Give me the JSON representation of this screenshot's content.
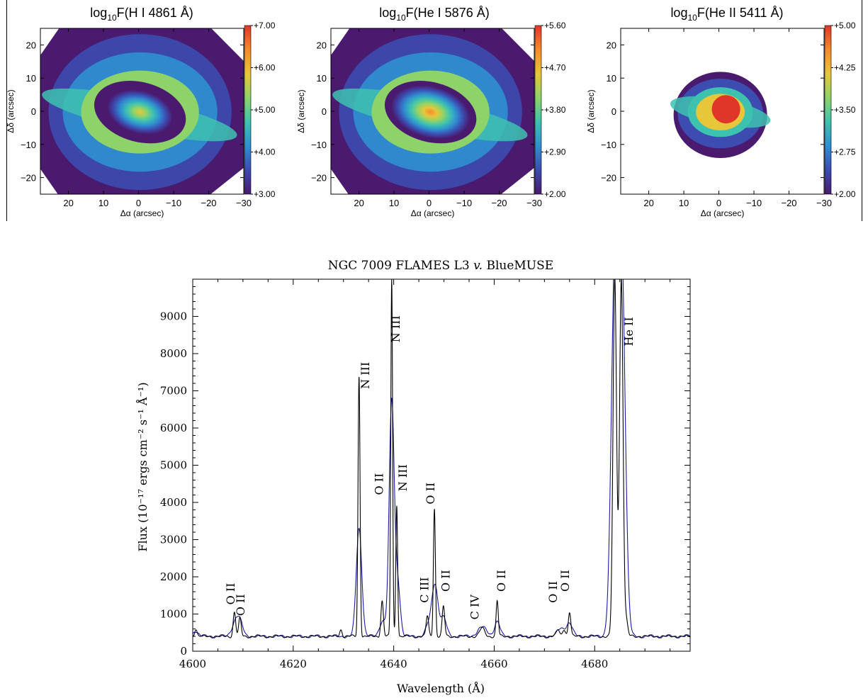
{
  "figure": {
    "maps": [
      {
        "title_main": "log",
        "title_sub": "10",
        "title_rest": "F(H I 4861 Å)",
        "colorbar_ticks": [
          "+7.00",
          "+6.00",
          "+5.00",
          "+4.00",
          "+3.00"
        ],
        "xticks": [
          "20",
          "10",
          "0",
          "−10",
          "−20",
          "−30"
        ],
        "yticks": [
          "20",
          "10",
          "0",
          "−10",
          "−20"
        ],
        "xlabel": "Δα (arcsec)",
        "ylabel": "Δδ (arcsec)",
        "peak_fraction": 0.7,
        "extent": "full"
      },
      {
        "title_main": "log",
        "title_sub": "10",
        "title_rest": "F(He I 5876 Å)",
        "colorbar_ticks": [
          "+5.60",
          "+4.70",
          "+3.80",
          "+2.90",
          "+2.00"
        ],
        "xticks": [
          "20",
          "10",
          "0",
          "−10",
          "−20",
          "−30"
        ],
        "yticks": [
          "20",
          "10",
          "0",
          "−10",
          "−20"
        ],
        "xlabel": "Δα (arcsec)",
        "ylabel": "Δδ (arcsec)",
        "peak_fraction": 0.92,
        "extent": "full"
      },
      {
        "title_main": "log",
        "title_sub": "10",
        "title_rest": "F(He II 5411 Å)",
        "colorbar_ticks": [
          "+5.00",
          "+4.25",
          "+3.50",
          "+2.75",
          "+2.00"
        ],
        "xticks": [
          "20",
          "10",
          "0",
          "−10",
          "−20",
          "−30"
        ],
        "yticks": [
          "20",
          "10",
          "0",
          "−10",
          "−20"
        ],
        "xlabel": "Δα (arcsec)",
        "ylabel": "Δδ (arcsec)",
        "peak_fraction": 0.95,
        "extent": "compact"
      }
    ],
    "colors": {
      "colormap": [
        "#4a1a6e",
        "#3c4cb0",
        "#2f8fd0",
        "#3ec2b0",
        "#8ed36a",
        "#e8c63a",
        "#f48a2c",
        "#e0362a"
      ],
      "spectrum_flames": "#000000",
      "spectrum_bluemuse": "#1a1aa8"
    }
  },
  "chart_data": {
    "type": "line",
    "title": "NGC 7009 FLAMES L3 v. BlueMUSE",
    "title_parts": [
      "NGC 7009 FLAMES L3 ",
      "v.",
      " BlueMUSE"
    ],
    "xlabel": "Wavelength (Å)",
    "ylabel": "Flux (10⁻¹⁷ ergs cm⁻² s⁻¹ Å⁻¹)",
    "xlim": [
      4600,
      4699
    ],
    "ylim": [
      0,
      10000
    ],
    "xticks": [
      4600,
      4620,
      4640,
      4660,
      4680
    ],
    "yticks": [
      0,
      1000,
      2000,
      3000,
      4000,
      5000,
      6000,
      7000,
      8000,
      9000
    ],
    "continuum": 400,
    "series": [
      {
        "key": "flames",
        "lines": [
          {
            "x": 4600.6,
            "peak": 200,
            "width": 0.25
          },
          {
            "x": 4608.3,
            "peak": 650,
            "width": 0.25
          },
          {
            "x": 4609.4,
            "peak": 480,
            "width": 0.25
          },
          {
            "x": 4629.5,
            "peak": 180,
            "width": 0.25
          },
          {
            "x": 4633.1,
            "peak": 7000,
            "width": 0.2
          },
          {
            "x": 4637.7,
            "peak": 950,
            "width": 0.25
          },
          {
            "x": 4639.6,
            "peak": 9600,
            "width": 0.18
          },
          {
            "x": 4640.6,
            "peak": 3550,
            "width": 0.18
          },
          {
            "x": 4646.7,
            "peak": 550,
            "width": 0.25
          },
          {
            "x": 4648.1,
            "peak": 3450,
            "width": 0.2
          },
          {
            "x": 4649.9,
            "peak": 800,
            "width": 0.25
          },
          {
            "x": 4657.6,
            "peak": 220,
            "width": 0.5
          },
          {
            "x": 4660.6,
            "peak": 950,
            "width": 0.22
          },
          {
            "x": 4672.7,
            "peak": 180,
            "width": 0.3
          },
          {
            "x": 4673.9,
            "peak": 200,
            "width": 0.3
          },
          {
            "x": 4675.0,
            "peak": 650,
            "width": 0.25
          },
          {
            "x": 4684.0,
            "peak": 9600,
            "width": 0.35
          },
          {
            "x": 4685.3,
            "peak": 9600,
            "width": 0.35
          },
          {
            "x": 4686.3,
            "peak": 400,
            "width": 0.3
          }
        ]
      },
      {
        "key": "bluemuse",
        "lines": [
          {
            "x": 4600.6,
            "peak": 150,
            "width": 0.5
          },
          {
            "x": 4608.5,
            "peak": 380,
            "width": 0.7
          },
          {
            "x": 4609.4,
            "peak": 320,
            "width": 0.6
          },
          {
            "x": 4633.1,
            "peak": 2900,
            "width": 0.55
          },
          {
            "x": 4637.8,
            "peak": 420,
            "width": 0.6
          },
          {
            "x": 4639.6,
            "peak": 6300,
            "width": 0.5
          },
          {
            "x": 4640.8,
            "peak": 1400,
            "width": 0.5
          },
          {
            "x": 4646.9,
            "peak": 280,
            "width": 0.6
          },
          {
            "x": 4648.2,
            "peak": 1400,
            "width": 0.6
          },
          {
            "x": 4649.9,
            "peak": 500,
            "width": 0.6
          },
          {
            "x": 4657.6,
            "peak": 250,
            "width": 0.9
          },
          {
            "x": 4660.6,
            "peak": 400,
            "width": 0.55
          },
          {
            "x": 4673.3,
            "peak": 200,
            "width": 0.8
          },
          {
            "x": 4675.0,
            "peak": 350,
            "width": 0.6
          },
          {
            "x": 4684.0,
            "peak": 9600,
            "width": 0.7
          },
          {
            "x": 4685.4,
            "peak": 9600,
            "width": 0.7
          }
        ]
      }
    ],
    "annotations": [
      {
        "text": "O II",
        "x": 4608.3,
        "y": 1250
      },
      {
        "text": "O II",
        "x": 4610.3,
        "y": 950
      },
      {
        "text": "N III",
        "x": 4635.1,
        "y": 7050
      },
      {
        "text": "O II",
        "x": 4637.9,
        "y": 4200
      },
      {
        "text": "N III",
        "x": 4641.2,
        "y": 8300
      },
      {
        "text": "N III",
        "x": 4642.6,
        "y": 4300
      },
      {
        "text": "O II",
        "x": 4648.1,
        "y": 3950
      },
      {
        "text": "C III",
        "x": 4646.9,
        "y": 1300
      },
      {
        "text": "O II",
        "x": 4651.1,
        "y": 1600
      },
      {
        "text": "C IV",
        "x": 4656.9,
        "y": 850
      },
      {
        "text": "O II",
        "x": 4662.2,
        "y": 1600
      },
      {
        "text": "O II",
        "x": 4672.5,
        "y": 1300
      },
      {
        "text": "O II",
        "x": 4674.9,
        "y": 1600
      },
      {
        "text": "He II",
        "x": 4687.6,
        "y": 8200
      }
    ]
  }
}
